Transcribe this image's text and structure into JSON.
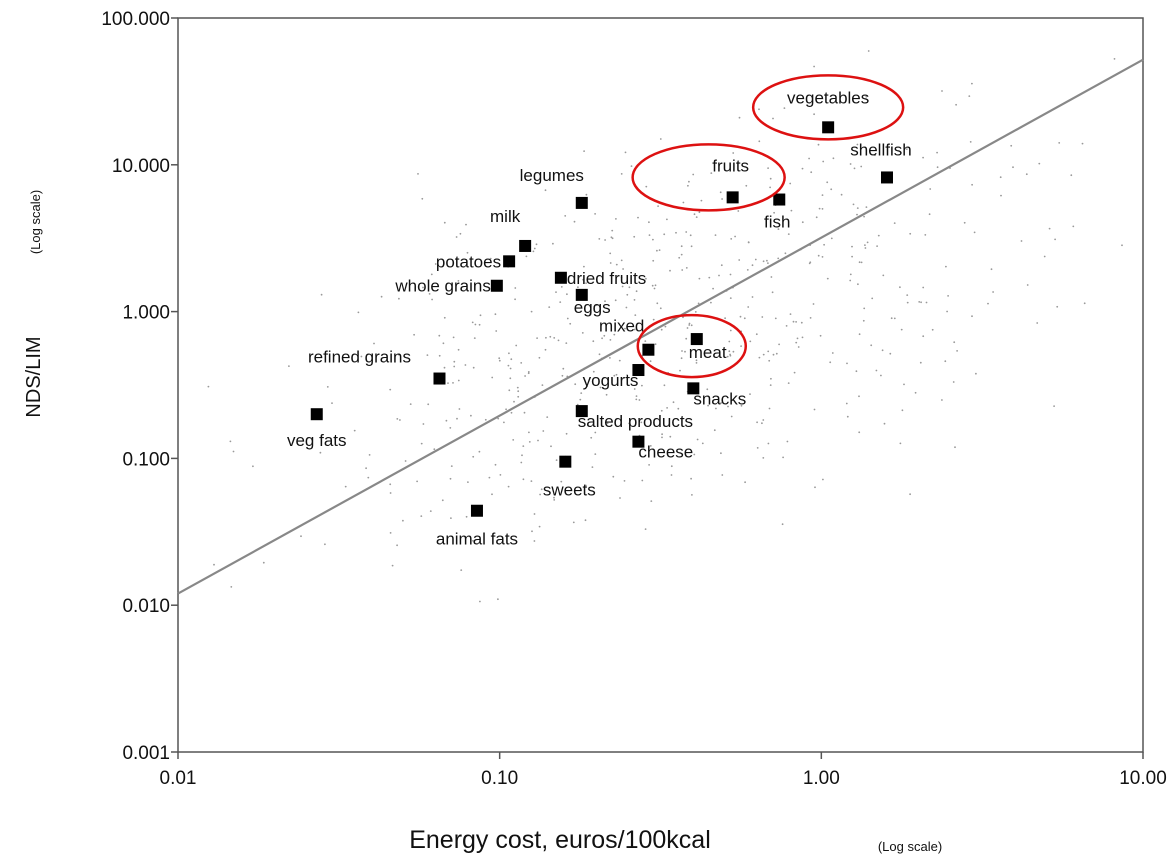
{
  "chart_data": {
    "type": "scatter",
    "title": "",
    "xlabel": "Energy cost, euros/100kcal",
    "xlabel_scale_note": "(Log scale)",
    "ylabel": "NDS/LIM",
    "ylabel_scale_note": "(Log scale)",
    "x_scale": "log",
    "y_scale": "log",
    "xlim": [
      0.01,
      10.0
    ],
    "ylim": [
      0.001,
      100.0
    ],
    "x_ticks": [
      {
        "value": 0.01,
        "label": "0.01"
      },
      {
        "value": 0.1,
        "label": "0.10"
      },
      {
        "value": 1.0,
        "label": "1.00"
      },
      {
        "value": 10.0,
        "label": "10.00"
      }
    ],
    "y_ticks": [
      {
        "value": 0.001,
        "label": "0.001"
      },
      {
        "value": 0.01,
        "label": "0.010"
      },
      {
        "value": 0.1,
        "label": "0.100"
      },
      {
        "value": 1.0,
        "label": "1.000"
      },
      {
        "value": 10.0,
        "label": "10.000"
      },
      {
        "value": 100.0,
        "label": "100.000"
      }
    ],
    "grid": false,
    "regression_line": {
      "x": [
        0.01,
        10.0
      ],
      "y": [
        0.012,
        52.0
      ]
    },
    "highlight_color": "#dd1111",
    "highlighted": [
      "vegetables",
      "fruits",
      "meat"
    ],
    "food_groups": [
      {
        "name": "vegetables",
        "x": 1.05,
        "y": 18.0
      },
      {
        "name": "shellfish",
        "x": 1.6,
        "y": 8.2
      },
      {
        "name": "fruits",
        "x": 0.53,
        "y": 6.0
      },
      {
        "name": "fish",
        "x": 0.74,
        "y": 5.8
      },
      {
        "name": "legumes",
        "x": 0.18,
        "y": 5.5
      },
      {
        "name": "milk",
        "x": 0.12,
        "y": 2.8
      },
      {
        "name": "potatoes",
        "x": 0.107,
        "y": 2.2
      },
      {
        "name": "dried fruits",
        "x": 0.155,
        "y": 1.7
      },
      {
        "name": "whole grains",
        "x": 0.098,
        "y": 1.5
      },
      {
        "name": "eggs",
        "x": 0.18,
        "y": 1.3
      },
      {
        "name": "mixed",
        "x": 0.29,
        "y": 0.55
      },
      {
        "name": "meat",
        "x": 0.41,
        "y": 0.65
      },
      {
        "name": "refined grains",
        "x": 0.065,
        "y": 0.35
      },
      {
        "name": "yogurts",
        "x": 0.27,
        "y": 0.4
      },
      {
        "name": "snacks",
        "x": 0.4,
        "y": 0.3
      },
      {
        "name": "salted products",
        "x": 0.18,
        "y": 0.21
      },
      {
        "name": "veg fats",
        "x": 0.027,
        "y": 0.2
      },
      {
        "name": "cheese",
        "x": 0.27,
        "y": 0.13
      },
      {
        "name": "sweets",
        "x": 0.16,
        "y": 0.095
      },
      {
        "name": "animal fats",
        "x": 0.085,
        "y": 0.044
      }
    ],
    "individual_foods_scatter": {
      "count": 600,
      "x_range": [
        0.012,
        9.0
      ],
      "y_range": [
        0.001,
        95.0
      ]
    }
  }
}
